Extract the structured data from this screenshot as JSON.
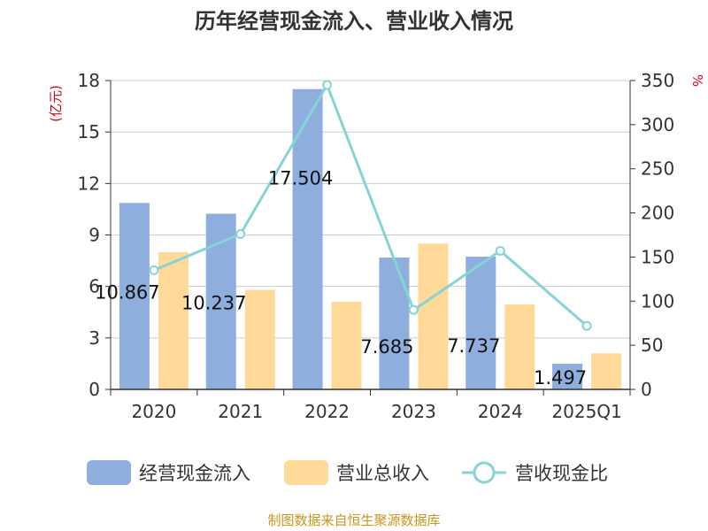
{
  "chart_data": {
    "type": "bar",
    "title": "历年经营现金流入、营业收入情况",
    "categories": [
      "2020",
      "2021",
      "2022",
      "2023",
      "2024",
      "2025Q1"
    ],
    "y_left": {
      "unit": "(亿元)",
      "min": 0,
      "max": 18,
      "ticks": [
        0,
        3,
        6,
        9,
        12,
        15,
        18
      ]
    },
    "y_right": {
      "unit": "%",
      "min": 0,
      "max": 350,
      "ticks": [
        0,
        50,
        100,
        150,
        200,
        250,
        300,
        350
      ]
    },
    "series": [
      {
        "name": "经营现金流入",
        "type": "bar",
        "axis": "left",
        "color": "#8eaedd",
        "values": [
          10.867,
          10.237,
          17.504,
          7.685,
          7.737,
          1.497
        ],
        "labels": [
          "10.867",
          "10.237",
          "17.504",
          "7.685",
          "7.737",
          "1.497"
        ]
      },
      {
        "name": "营业总收入",
        "type": "bar",
        "axis": "left",
        "color": "#ffd998",
        "values": [
          8.0,
          5.8,
          5.1,
          8.5,
          4.95,
          2.1
        ]
      },
      {
        "name": "营收现金比",
        "type": "line",
        "axis": "right",
        "color": "#86d3d8",
        "values": [
          135,
          176,
          345,
          90,
          157,
          72
        ]
      }
    ],
    "grid": true,
    "legend_position": "bottom"
  },
  "footer": {
    "source": "制图数据来自恒生聚源数据库"
  }
}
